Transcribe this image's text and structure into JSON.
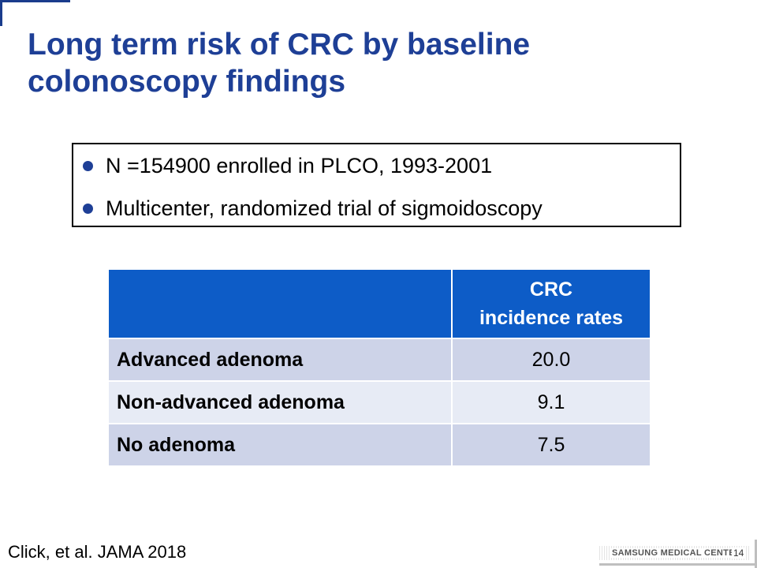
{
  "slide": {
    "title": "Long term risk of CRC by baseline colonoscopy findings",
    "bullets": [
      "N =154900 enrolled in PLCO, 1993-2001",
      "Multicenter, randomized trial of sigmoidoscopy"
    ],
    "reference": "Click, et al. JAMA 2018",
    "brand": "SAMSUNG MEDICAL CENTER",
    "page_number": "14"
  },
  "table": {
    "header": {
      "col1": "",
      "col2_line1": "CRC",
      "col2_line2": "incidence rates"
    },
    "rows": [
      {
        "label": "Advanced adenoma",
        "value": "20.0"
      },
      {
        "label": "Non-advanced adenoma",
        "value": "9.1"
      },
      {
        "label": "No adenoma",
        "value": "7.5"
      }
    ]
  },
  "colors": {
    "title": "#1e3f96",
    "table_header": "#0d5cc7",
    "row_odd": "#cdd3e8",
    "row_even": "#e7ebf5"
  }
}
